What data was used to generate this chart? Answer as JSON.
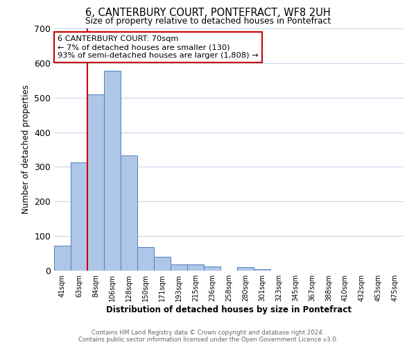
{
  "title": "6, CANTERBURY COURT, PONTEFRACT, WF8 2UH",
  "subtitle": "Size of property relative to detached houses in Pontefract",
  "xlabel": "Distribution of detached houses by size in Pontefract",
  "ylabel": "Number of detached properties",
  "bar_labels": [
    "41sqm",
    "63sqm",
    "84sqm",
    "106sqm",
    "128sqm",
    "150sqm",
    "171sqm",
    "193sqm",
    "215sqm",
    "236sqm",
    "258sqm",
    "280sqm",
    "301sqm",
    "323sqm",
    "345sqm",
    "367sqm",
    "388sqm",
    "410sqm",
    "432sqm",
    "453sqm",
    "475sqm"
  ],
  "bar_values": [
    72,
    312,
    510,
    578,
    332,
    68,
    40,
    19,
    19,
    12,
    0,
    10,
    5,
    0,
    0,
    0,
    0,
    0,
    0,
    0,
    0
  ],
  "bar_color": "#aec6e8",
  "bar_edgecolor": "#5080c0",
  "ylim": [
    0,
    700
  ],
  "yticks": [
    0,
    100,
    200,
    300,
    400,
    500,
    600,
    700
  ],
  "property_line_bin": 1,
  "property_line_color": "#cc0000",
  "annotation_text": "6 CANTERBURY COURT: 70sqm\n← 7% of detached houses are smaller (130)\n93% of semi-detached houses are larger (1,808) →",
  "annotation_box_color": "#ffffff",
  "annotation_box_edgecolor": "#cc0000",
  "footer_line1": "Contains HM Land Registry data © Crown copyright and database right 2024.",
  "footer_line2": "Contains public sector information licensed under the Open Government Licence v3.0.",
  "background_color": "#ffffff",
  "grid_color": "#c8d8ec"
}
